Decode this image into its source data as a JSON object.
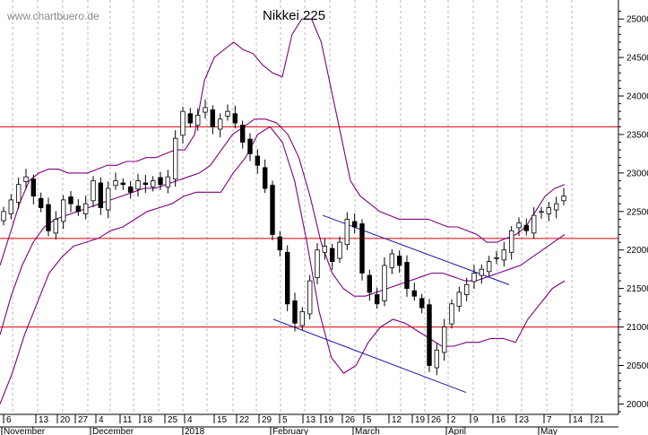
{
  "watermark": "www.chartbuero.de",
  "chart_data": {
    "type": "candlestick",
    "title": "Nikkei 225",
    "ylim": [
      19900,
      25200
    ],
    "yticks": [
      20000,
      20500,
      21000,
      21500,
      22000,
      22500,
      23000,
      23500,
      24000,
      24500,
      25000
    ],
    "grid": "vertical dashed",
    "x_day_labels": [
      "6",
      "13",
      "20",
      "27",
      "4",
      "11",
      "18",
      "25",
      "4",
      "15",
      "22",
      "29",
      "5",
      "13",
      "19",
      "26",
      "5",
      "12",
      "19",
      "26",
      "2",
      "9",
      "16",
      "23",
      "7",
      "14",
      "21"
    ],
    "x_month_labels": [
      {
        "label": "November",
        "at_day": "6"
      },
      {
        "label": "December",
        "at_day": "4"
      },
      {
        "label": "2018",
        "at_day": "4"
      },
      {
        "label": "February",
        "at_day": "5"
      },
      {
        "label": "March",
        "at_day": "5"
      },
      {
        "label": "April",
        "at_day": "2"
      },
      {
        "label": "May",
        "at_day": "7"
      }
    ],
    "horizontal_lines": [
      {
        "value": 23600,
        "color": "#dd0000"
      },
      {
        "value": 22150,
        "color": "#dd0000"
      },
      {
        "value": 21000,
        "color": "#dd0000"
      }
    ],
    "closes": [
      22500,
      22650,
      22850,
      22950,
      22700,
      22550,
      22250,
      22400,
      22650,
      22600,
      22500,
      22600,
      22900,
      22550,
      22800,
      22900,
      22850,
      22750,
      22900,
      22850,
      22900,
      22850,
      22950,
      23450,
      23800,
      23650,
      23750,
      23850,
      23600,
      23700,
      23800,
      23650,
      23400,
      23250,
      23100,
      22800,
      22200,
      22000,
      21300,
      21050,
      21200,
      21600,
      22000,
      22050,
      21850,
      22100,
      22400,
      22300,
      21700,
      21450,
      21300,
      21800,
      21950,
      21800,
      21500,
      21400,
      21250,
      20500,
      20700,
      21000,
      21300,
      21450,
      21550,
      21700,
      21750,
      21850,
      21900,
      22000,
      22250,
      22350,
      22250,
      22450,
      22500,
      22550,
      22600,
      22700
    ],
    "bb_upper": [
      21800,
      22200,
      22600,
      22900,
      23000,
      23050,
      23050,
      23000,
      23000,
      23000,
      23050,
      23100,
      23100,
      23150,
      23150,
      23200,
      23200,
      23250,
      23300,
      23300,
      23500,
      24200,
      24500,
      24600,
      24700,
      24600,
      24550,
      24400,
      24300,
      24250,
      24800,
      25000,
      25000,
      24700,
      24100,
      23500,
      22900,
      22700,
      22600,
      22500,
      22450,
      22400,
      22400,
      22400,
      22400,
      22350,
      22300,
      22300,
      22250,
      22200,
      22100,
      22100,
      22150,
      22200,
      22300,
      22500,
      22700,
      22800,
      22850
    ],
    "bb_middle": [
      20900,
      21400,
      21800,
      22100,
      22300,
      22400,
      22450,
      22500,
      22550,
      22600,
      22650,
      22700,
      22750,
      22800,
      22800,
      22850,
      22900,
      22950,
      23000,
      23100,
      23300,
      23500,
      23600,
      23700,
      23700,
      23650,
      23500,
      23200,
      22700,
      22100,
      21700,
      21500,
      21400,
      21400,
      21450,
      21500,
      21550,
      21600,
      21650,
      21700,
      21700,
      21650,
      21600,
      21600,
      21650,
      21700,
      21750,
      21800,
      21900,
      22000,
      22100,
      22200
    ],
    "bb_lower": [
      20000,
      20400,
      20900,
      21300,
      21700,
      21900,
      22050,
      22100,
      22150,
      22250,
      22300,
      22400,
      22500,
      22550,
      22600,
      22700,
      22750,
      22750,
      22750,
      23000,
      23200,
      23500,
      23600,
      23400,
      22900,
      22100,
      21200,
      20600,
      20400,
      20500,
      20800,
      21000,
      21100,
      21050,
      20950,
      20850,
      20750,
      20750,
      20800,
      20800,
      20850,
      20850,
      20800,
      21100,
      21300,
      21500,
      21600
    ]
  },
  "trend_lines": [
    {
      "from": [
        "Feb 19",
        22450
      ],
      "to": [
        "Apr 20",
        21550
      ]
    },
    {
      "from": [
        "Feb 5",
        21100
      ],
      "to": [
        "Mar 26",
        20150
      ]
    }
  ]
}
